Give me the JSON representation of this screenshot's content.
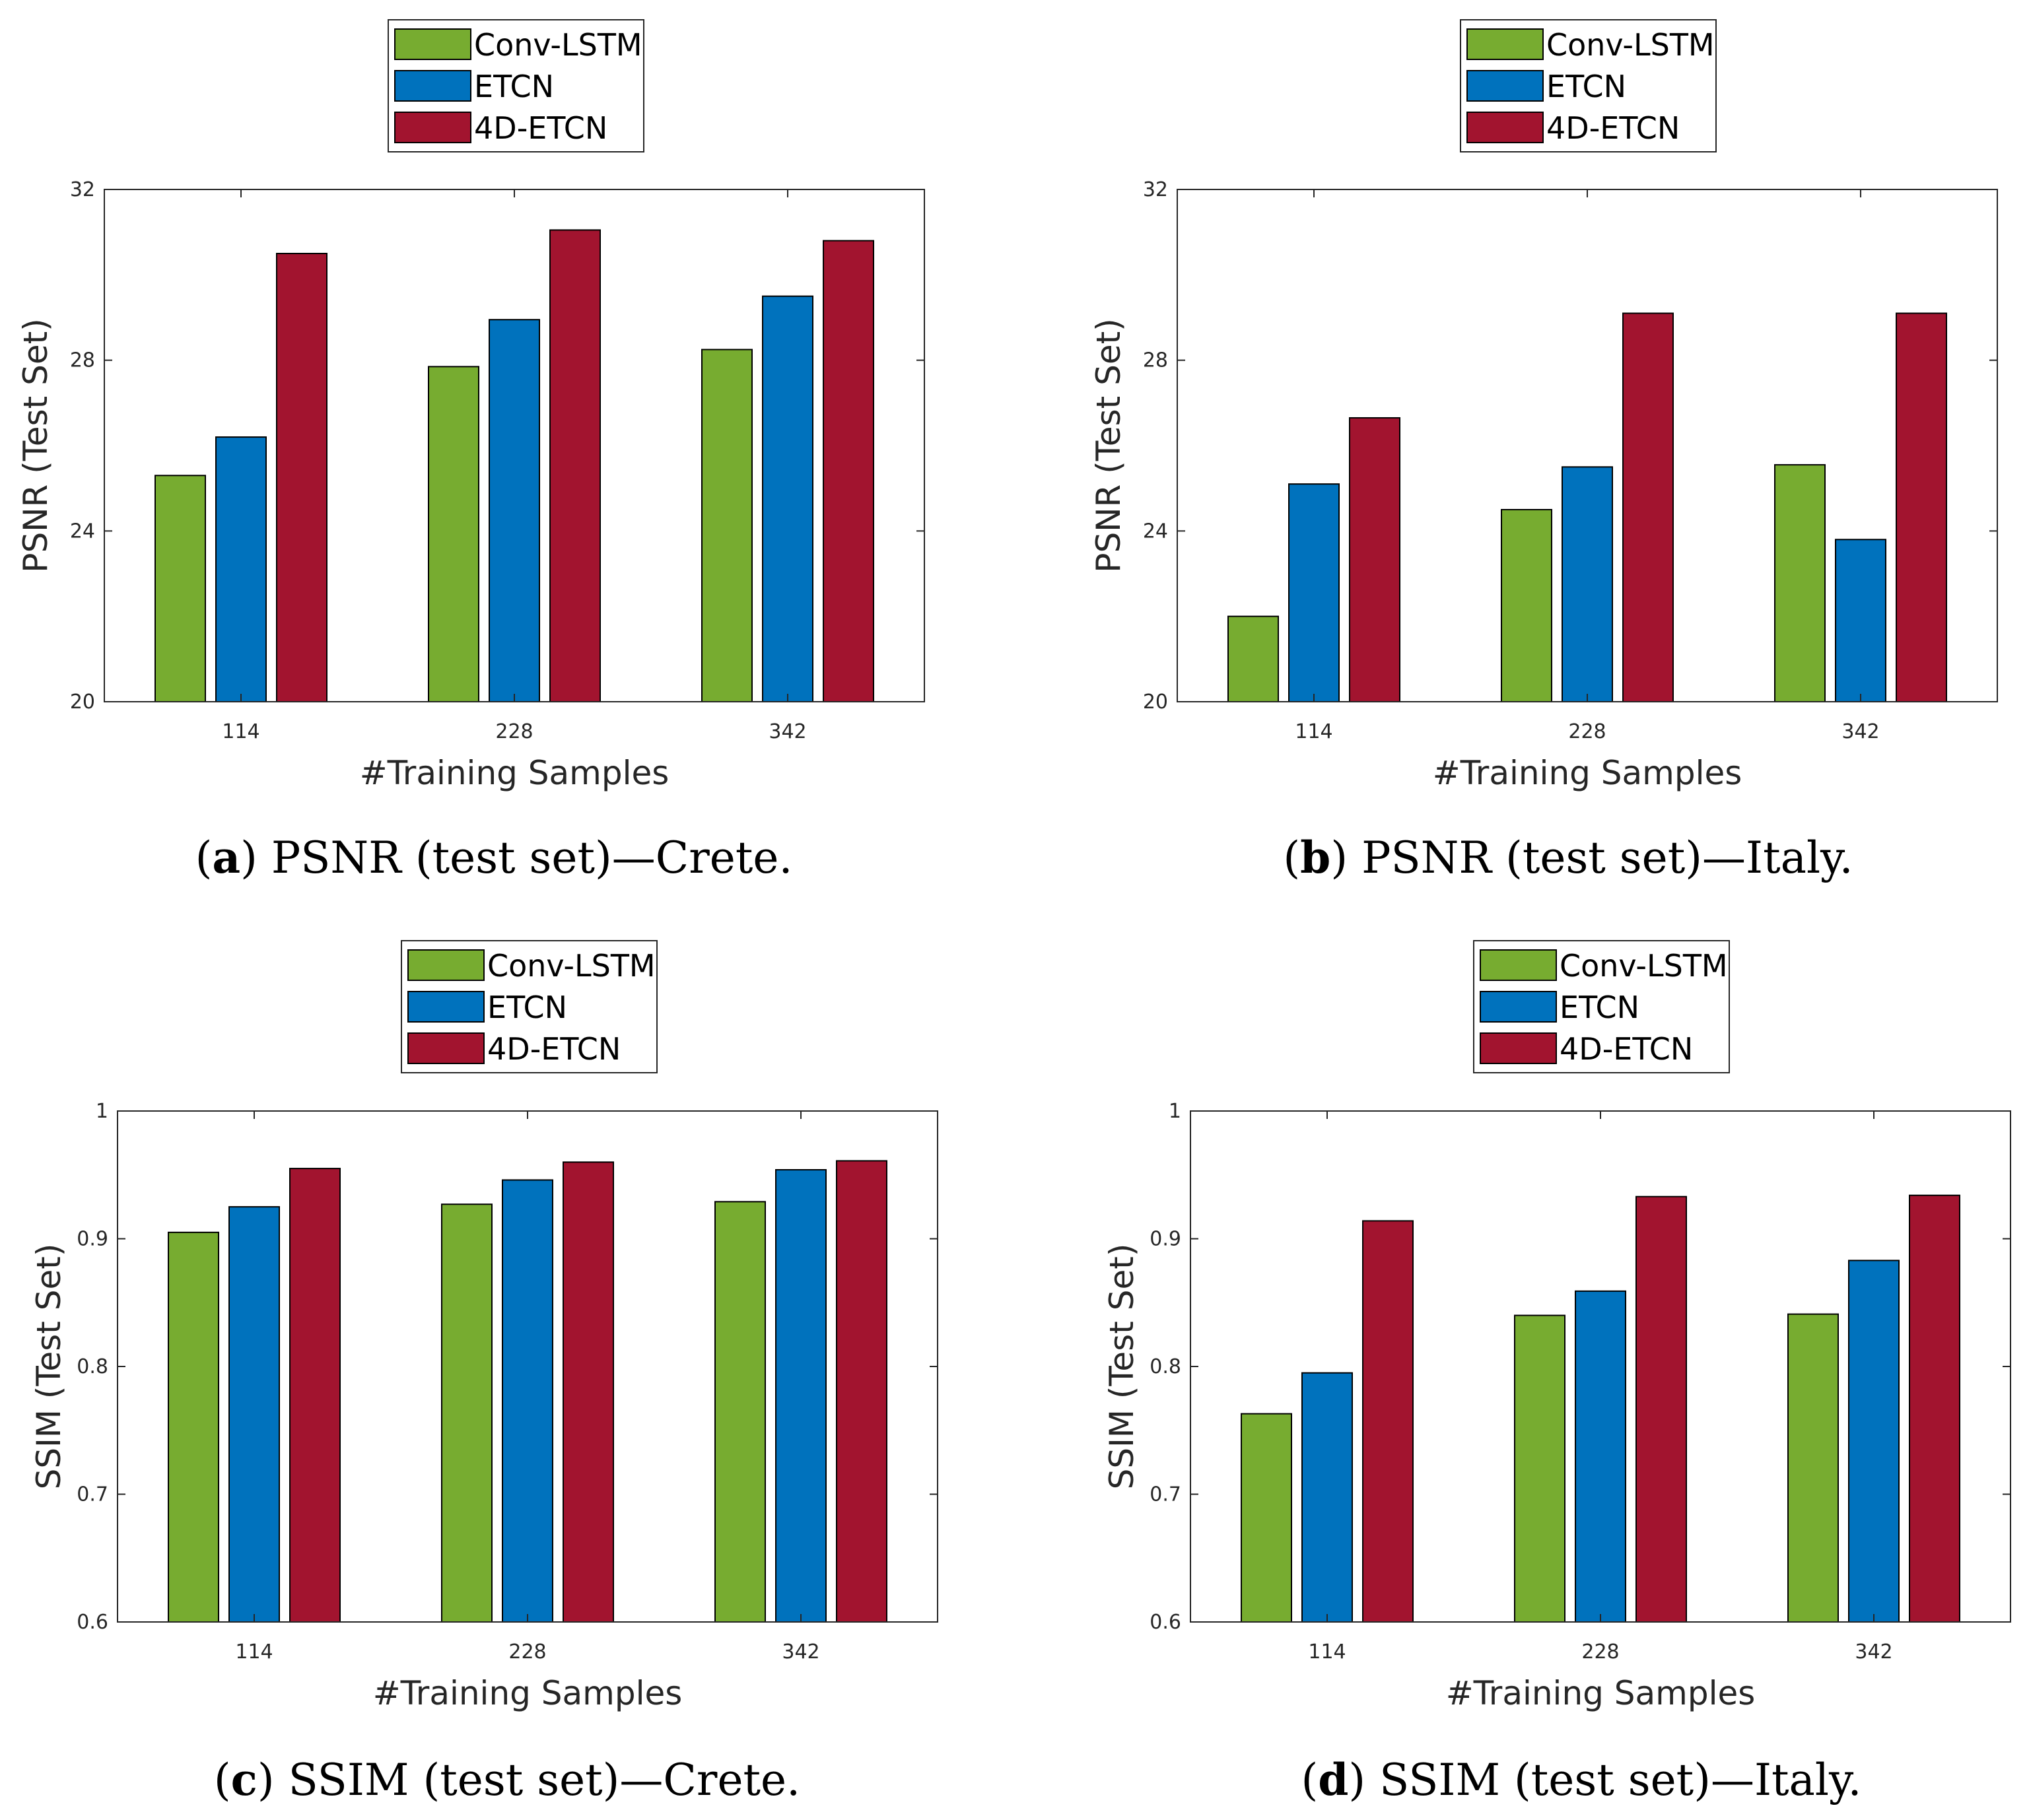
{
  "colors": {
    "conv_lstm": "#77AC30",
    "etcn": "#0072BD",
    "etcn4d": "#A2142F"
  },
  "chart_data": [
    {
      "id": "a",
      "type": "bar",
      "xlabel": "#Training Samples",
      "ylabel": "PSNR (Test Set)",
      "categories": [
        "114",
        "228",
        "342"
      ],
      "ylim": [
        20,
        32
      ],
      "yticks": [
        "20",
        "24",
        "28",
        "32"
      ],
      "legend_position": "top-center",
      "series": [
        {
          "name": "Conv-LSTM",
          "values": [
            25.3,
            27.85,
            28.25
          ]
        },
        {
          "name": "ETCN",
          "values": [
            26.2,
            28.95,
            29.5
          ]
        },
        {
          "name": "4D-ETCN",
          "values": [
            30.5,
            31.05,
            30.8
          ]
        }
      ],
      "caption": {
        "letter": "a",
        "text": "PSNR (test set)—Crete."
      }
    },
    {
      "id": "b",
      "type": "bar",
      "xlabel": "#Training Samples",
      "ylabel": "PSNR (Test Set)",
      "categories": [
        "114",
        "228",
        "342"
      ],
      "ylim": [
        20,
        32
      ],
      "yticks": [
        "20",
        "24",
        "28",
        "32"
      ],
      "legend_position": "top-center",
      "series": [
        {
          "name": "Conv-LSTM",
          "values": [
            22.0,
            24.5,
            25.55
          ]
        },
        {
          "name": "ETCN",
          "values": [
            25.1,
            25.5,
            23.8
          ]
        },
        {
          "name": "4D-ETCN",
          "values": [
            26.65,
            29.1,
            29.1
          ]
        }
      ],
      "caption": {
        "letter": "b",
        "text": "PSNR (test set)—Italy."
      }
    },
    {
      "id": "c",
      "type": "bar",
      "xlabel": "#Training Samples",
      "ylabel": "SSIM (Test Set)",
      "categories": [
        "114",
        "228",
        "342"
      ],
      "ylim": [
        0.6,
        1.0
      ],
      "yticks": [
        "0.6",
        "0.7",
        "0.8",
        "0.9",
        "1"
      ],
      "legend_position": "top-center",
      "series": [
        {
          "name": "Conv-LSTM",
          "values": [
            0.905,
            0.927,
            0.929
          ]
        },
        {
          "name": "ETCN",
          "values": [
            0.925,
            0.946,
            0.954
          ]
        },
        {
          "name": "4D-ETCN",
          "values": [
            0.955,
            0.96,
            0.961
          ]
        }
      ],
      "caption": {
        "letter": "c",
        "text": "SSIM (test set)—Crete."
      }
    },
    {
      "id": "d",
      "type": "bar",
      "xlabel": "#Training Samples",
      "ylabel": "SSIM (Test Set)",
      "categories": [
        "114",
        "228",
        "342"
      ],
      "ylim": [
        0.6,
        1.0
      ],
      "yticks": [
        "0.6",
        "0.7",
        "0.8",
        "0.9",
        "1"
      ],
      "legend_position": "top-center",
      "series": [
        {
          "name": "Conv-LSTM",
          "values": [
            0.763,
            0.84,
            0.841
          ]
        },
        {
          "name": "ETCN",
          "values": [
            0.795,
            0.859,
            0.883
          ]
        },
        {
          "name": "4D-ETCN",
          "values": [
            0.914,
            0.933,
            0.934
          ]
        }
      ],
      "caption": {
        "letter": "d",
        "text": "SSIM (test set)—Italy."
      }
    }
  ]
}
